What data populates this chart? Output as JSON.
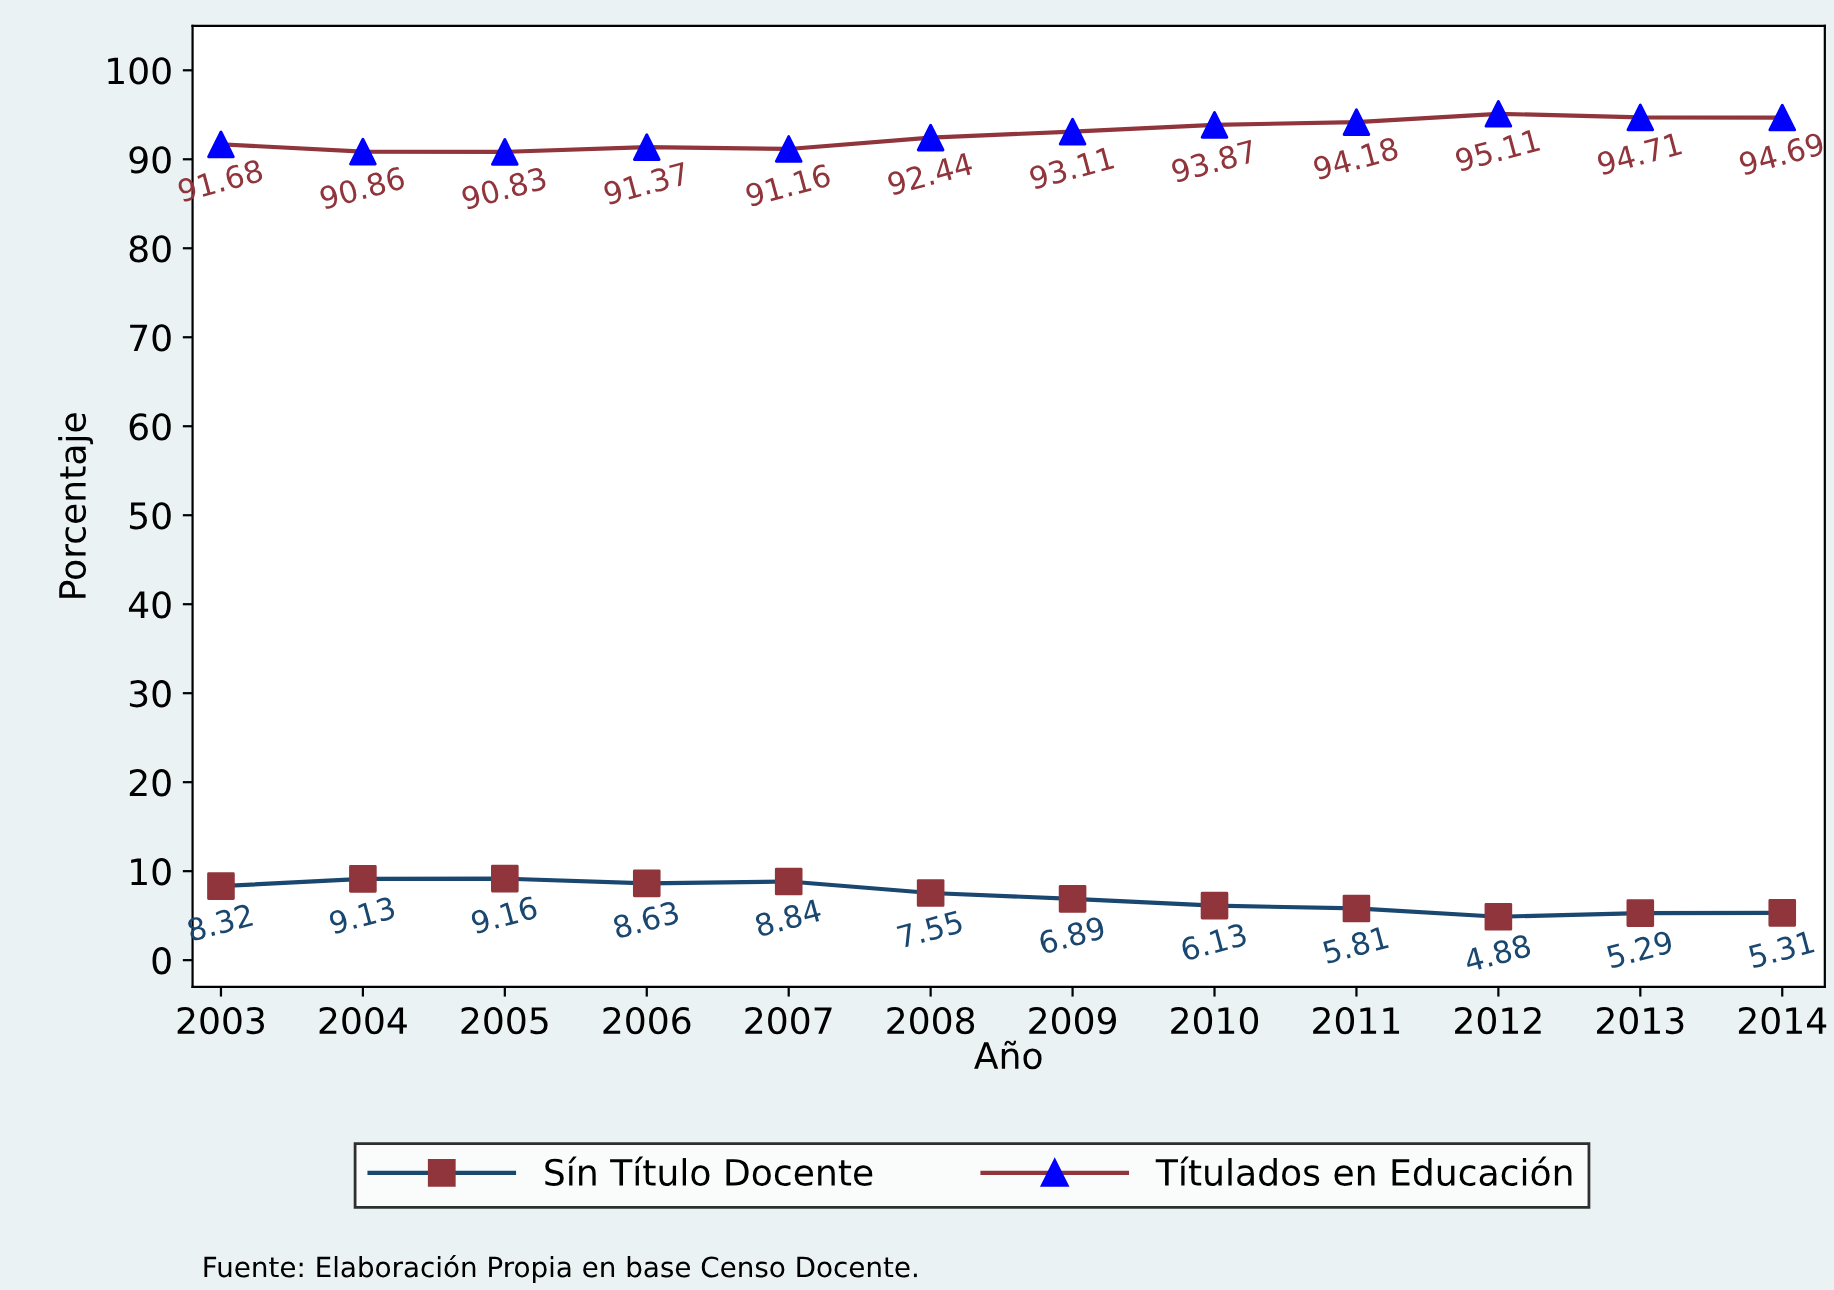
{
  "chart_data": {
    "type": "line",
    "xlabel": "Año",
    "ylabel": "Porcentaje",
    "x": [
      2003,
      2004,
      2005,
      2006,
      2007,
      2008,
      2009,
      2010,
      2011,
      2012,
      2013,
      2014
    ],
    "series": [
      {
        "name": "Sín Título Docente",
        "color": "#1a476f",
        "colors": [
          "#90353b",
          "#90353b",
          "#90353b",
          "#90353b",
          "#90353b",
          "#90353b",
          "#90353b",
          "#90353b",
          "#90353b",
          "#90353b",
          "#90353b",
          "#90353b"
        ],
        "marker": "square",
        "values": [
          8.32,
          9.13,
          9.16,
          8.63,
          8.84,
          7.55,
          6.89,
          6.13,
          5.81,
          4.88,
          5.29,
          5.31
        ]
      },
      {
        "name": "Títulados en Educación",
        "color": "#90353b",
        "colors": [
          "#0000ff",
          "#0000ff",
          "#0000ff",
          "#0000ff",
          "#0000ff",
          "#0000ff",
          "#0000ff",
          "#0000ff",
          "#0000ff",
          "#0000ff",
          "#0000ff",
          "#0000ff"
        ],
        "marker": "triangle",
        "values": [
          91.68,
          90.86,
          90.83,
          91.37,
          91.16,
          92.44,
          93.11,
          93.87,
          94.18,
          95.11,
          94.71,
          94.69
        ]
      }
    ],
    "xlim": [
      2002.8,
      2014.3
    ],
    "ylim": [
      -3,
      105
    ],
    "xticks": [
      2003,
      2004,
      2005,
      2006,
      2007,
      2008,
      2009,
      2010,
      2011,
      2012,
      2013,
      2014
    ],
    "yticks": [
      0,
      10,
      20,
      30,
      40,
      50,
      60,
      70,
      80,
      90,
      100
    ],
    "grid": false,
    "data_labels": true,
    "legend": "bottom",
    "line_style": "solid",
    "annotations": [
      "Fuente: Elaboración Propia en base Censo Docente."
    ]
  }
}
